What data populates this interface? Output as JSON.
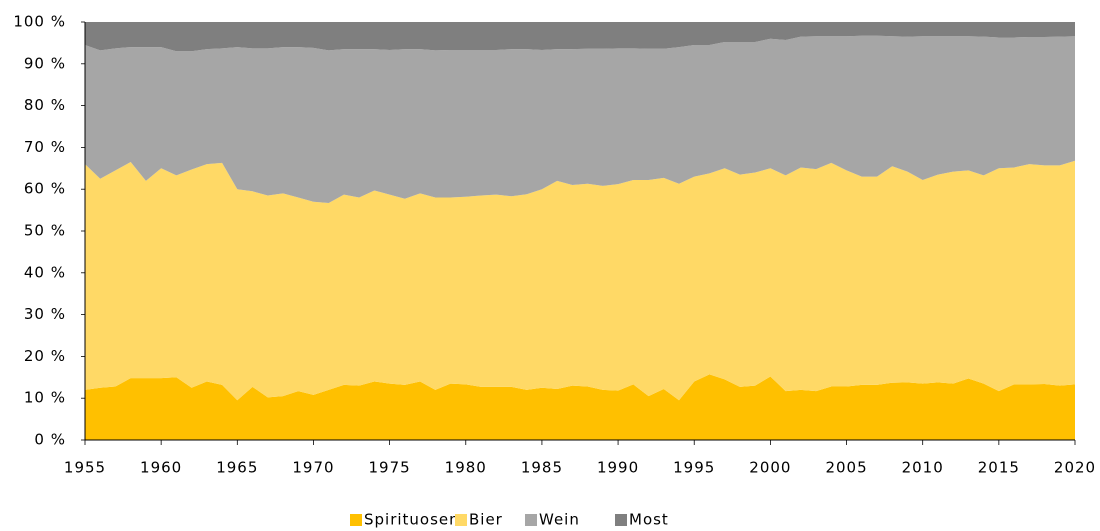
{
  "chart_data": {
    "type": "stacked_area",
    "x": [
      1955,
      1956,
      1957,
      1958,
      1959,
      1960,
      1961,
      1962,
      1963,
      1964,
      1965,
      1966,
      1967,
      1968,
      1969,
      1970,
      1971,
      1972,
      1973,
      1974,
      1975,
      1976,
      1977,
      1978,
      1979,
      1980,
      1981,
      1982,
      1983,
      1984,
      1985,
      1986,
      1987,
      1988,
      1989,
      1990,
      1991,
      1992,
      1993,
      1994,
      1995,
      1996,
      1997,
      1998,
      1999,
      2000,
      2001,
      2002,
      2003,
      2004,
      2005,
      2006,
      2007,
      2008,
      2009,
      2010,
      2011,
      2012,
      2013,
      2014,
      2015,
      2016,
      2017,
      2018,
      2019,
      2020
    ],
    "series": [
      {
        "name": "Spirituosen",
        "color": "#ffc000",
        "values": [
          12,
          12.5,
          12.8,
          14.8,
          14.8,
          14.8,
          15,
          12.5,
          14,
          13.2,
          9.5,
          12.7,
          10.2,
          10.5,
          11.7,
          10.8,
          12,
          13.2,
          13,
          14,
          13.5,
          13.2,
          14,
          12,
          13.5,
          13.3,
          12.7,
          12.7,
          12.7,
          12,
          12.5,
          12.2,
          13,
          12.8,
          12,
          11.8,
          13.3,
          10.5,
          12.2,
          9.5,
          14,
          15.7,
          14.5,
          12.7,
          13,
          15.2,
          11.7,
          12,
          11.7,
          12.8,
          12.8,
          13.2,
          13.2,
          13.7,
          13.8,
          13.5,
          13.8,
          13.5,
          14.7,
          13.5,
          11.7,
          13.3,
          13.3,
          13.4,
          13,
          13.3
        ]
      },
      {
        "name": "Bier",
        "color": "#ffd966",
        "values": [
          54,
          50,
          51.7,
          51.7,
          47.2,
          50.2,
          48.3,
          52.2,
          52,
          53.1,
          50.5,
          46.8,
          48.3,
          48.5,
          46.3,
          46.2,
          44.7,
          45.5,
          45,
          45.7,
          45.2,
          44.5,
          45,
          46,
          44.5,
          44.9,
          45.8,
          46,
          45.6,
          46.8,
          47.5,
          49.8,
          48,
          48.5,
          48.8,
          49.4,
          48.9,
          51.7,
          50.5,
          51.8,
          49,
          48.1,
          50.5,
          50.8,
          51,
          49.8,
          51.6,
          53.2,
          53.1,
          53.5,
          51.7,
          49.8,
          49.8,
          51.8,
          50.4,
          48.7,
          49.7,
          50.7,
          49.8,
          49.8,
          53.3,
          51.9,
          52.7,
          52.3,
          52.7,
          53.5
        ]
      },
      {
        "name": "Wein",
        "color": "#a6a6a6",
        "values": [
          28.5,
          30.7,
          29.2,
          27.5,
          32,
          29,
          29.7,
          28.3,
          27.5,
          27.4,
          34,
          34.2,
          35.2,
          35,
          36,
          36.8,
          36.5,
          34.8,
          35.5,
          33.8,
          34.6,
          35.8,
          34.5,
          35.2,
          35.3,
          35.1,
          34.8,
          34.6,
          35.2,
          34.7,
          33.3,
          31.5,
          32.5,
          32.3,
          32.8,
          32.5,
          31.5,
          31.4,
          30.9,
          32.7,
          31.5,
          30.7,
          30.2,
          31.7,
          31.2,
          31,
          32.4,
          31.3,
          31.8,
          30.3,
          32.1,
          33.7,
          33.7,
          31.1,
          32.3,
          34.4,
          33.1,
          32.4,
          32.1,
          33.2,
          31.3,
          31.1,
          30.4,
          30.7,
          30.8,
          29.8
        ]
      },
      {
        "name": "Most",
        "color": "#7f7f7f",
        "values": [
          5.5,
          6.8,
          6.3,
          6,
          6,
          6,
          7,
          7,
          6.5,
          6.3,
          6,
          6.3,
          6.3,
          6,
          6,
          6.2,
          6.8,
          6.5,
          6.5,
          6.5,
          6.7,
          6.5,
          6.5,
          6.8,
          6.7,
          6.7,
          6.7,
          6.7,
          6.5,
          6.5,
          6.7,
          6.5,
          6.5,
          6.4,
          6.4,
          6.3,
          6.3,
          6.4,
          6.4,
          6,
          5.5,
          5.5,
          4.8,
          4.8,
          4.8,
          4,
          4.3,
          3.5,
          3.4,
          3.4,
          3.4,
          3.3,
          3.3,
          3.4,
          3.5,
          3.4,
          3.4,
          3.4,
          3.4,
          3.5,
          3.7,
          3.7,
          3.6,
          3.6,
          3.5,
          3.4
        ]
      }
    ],
    "xlim": [
      1955,
      2020
    ],
    "xticks": [
      1955,
      1960,
      1965,
      1970,
      1975,
      1980,
      1985,
      1990,
      1995,
      2000,
      2005,
      2010,
      2015,
      2020
    ],
    "ylim": [
      0,
      100
    ],
    "yticks": [
      {
        "value": 0,
        "label": "0 %"
      },
      {
        "value": 10,
        "label": "10 %"
      },
      {
        "value": 20,
        "label": "20 %"
      },
      {
        "value": 30,
        "label": "30 %"
      },
      {
        "value": 40,
        "label": "40 %"
      },
      {
        "value": 50,
        "label": "50 %"
      },
      {
        "value": 60,
        "label": "60 %"
      },
      {
        "value": 70,
        "label": "70 %"
      },
      {
        "value": 80,
        "label": "80 %"
      },
      {
        "value": 90,
        "label": "90 %"
      },
      {
        "value": 100,
        "label": "100 %"
      }
    ],
    "legend": "bottom"
  }
}
